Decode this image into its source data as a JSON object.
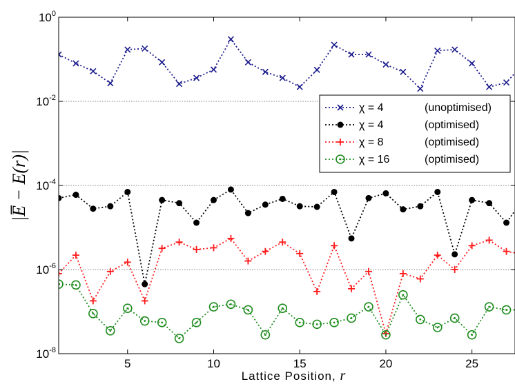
{
  "chart_data": {
    "type": "line",
    "xlabel": "Lattice Position, ",
    "xlabel_var": "r",
    "ylabel": "|E̅ − E(r)|",
    "yscale": "log",
    "xlim": [
      1,
      27.5
    ],
    "ylim": [
      1e-08,
      1
    ],
    "x_ticks": [
      5,
      10,
      15,
      20,
      25
    ],
    "x_tick_labels": [
      "5",
      "10",
      "15",
      "20",
      "25"
    ],
    "y_ticks": [
      {
        "value": 1e-08,
        "base": "10",
        "exp": "-8"
      },
      {
        "value": 1e-06,
        "base": "10",
        "exp": "-6"
      },
      {
        "value": 0.0001,
        "base": "10",
        "exp": "-4"
      },
      {
        "value": 0.01,
        "base": "10",
        "exp": "-2"
      },
      {
        "value": 1,
        "base": "10",
        "exp": "0"
      }
    ],
    "grid": "horizontal dotted lines at 1e-6, 1e-4, 1e-2",
    "legend_position": "right",
    "x": [
      1,
      2,
      3,
      4,
      5,
      6,
      7,
      8,
      9,
      10,
      11,
      12,
      13,
      14,
      15,
      16,
      17,
      18,
      19,
      20,
      21,
      22,
      23,
      24,
      25,
      26,
      27,
      27.5
    ],
    "series": [
      {
        "symbol": "χ",
        "chi": "4",
        "note": "(unoptimised)",
        "color": "#1a1a8c",
        "marker": "x",
        "values": [
          0.13,
          0.08,
          0.052,
          0.027,
          0.17,
          0.18,
          0.085,
          0.026,
          0.036,
          0.057,
          0.3,
          0.085,
          0.05,
          0.036,
          0.022,
          0.056,
          0.22,
          0.13,
          0.13,
          0.075,
          0.05,
          0.02,
          0.16,
          0.17,
          0.08,
          0.022,
          0.028,
          0.047
        ]
      },
      {
        "symbol": "χ",
        "chi": "4",
        "note": "(optimised)",
        "color": "#000000",
        "marker": "dot",
        "values": [
          5e-05,
          6e-05,
          2.8e-05,
          3.2e-05,
          7e-05,
          4.5e-07,
          4.5e-05,
          3.8e-05,
          1.3e-05,
          4.5e-05,
          8e-05,
          2.2e-05,
          3.5e-05,
          4.8e-05,
          3.2e-05,
          3.1e-05,
          7e-05,
          5.5e-06,
          5e-05,
          6.5e-05,
          2.7e-05,
          3.2e-05,
          7e-05,
          2.3e-06,
          4.5e-05,
          3.8e-05,
          1.3e-05,
          2.5e-05
        ]
      },
      {
        "symbol": "χ",
        "chi": "8",
        "note": "(optimised)",
        "color": "#ff1a1a",
        "marker": "+",
        "values": [
          8e-07,
          2.2e-06,
          1.8e-07,
          9e-07,
          1.5e-06,
          1.8e-07,
          3.2e-06,
          4.5e-06,
          3e-06,
          3.3e-06,
          5.5e-06,
          1.6e-06,
          2.7e-06,
          4.5e-06,
          2.4e-06,
          3e-07,
          3.7e-06,
          3.5e-07,
          9e-07,
          3e-08,
          8e-07,
          6e-07,
          2.2e-06,
          1e-06,
          3.7e-06,
          5e-06,
          2.7e-06,
          2.5e-06
        ]
      },
      {
        "symbol": "χ",
        "chi": "16",
        "note": "(optimised)",
        "color": "#1f8c1f",
        "marker": "o",
        "values": [
          4.5e-07,
          4.3e-07,
          9e-08,
          3.5e-08,
          1.2e-07,
          6e-08,
          5.5e-08,
          2.3e-08,
          5.5e-08,
          1.3e-07,
          1.5e-07,
          1.1e-07,
          2.8e-08,
          1.2e-07,
          5.5e-08,
          5e-08,
          5.5e-08,
          7e-08,
          1.3e-07,
          2.8e-08,
          2.5e-07,
          6.5e-08,
          4.2e-08,
          7e-08,
          2.8e-08,
          1.3e-07,
          1.1e-07,
          1.1e-07
        ]
      }
    ]
  }
}
